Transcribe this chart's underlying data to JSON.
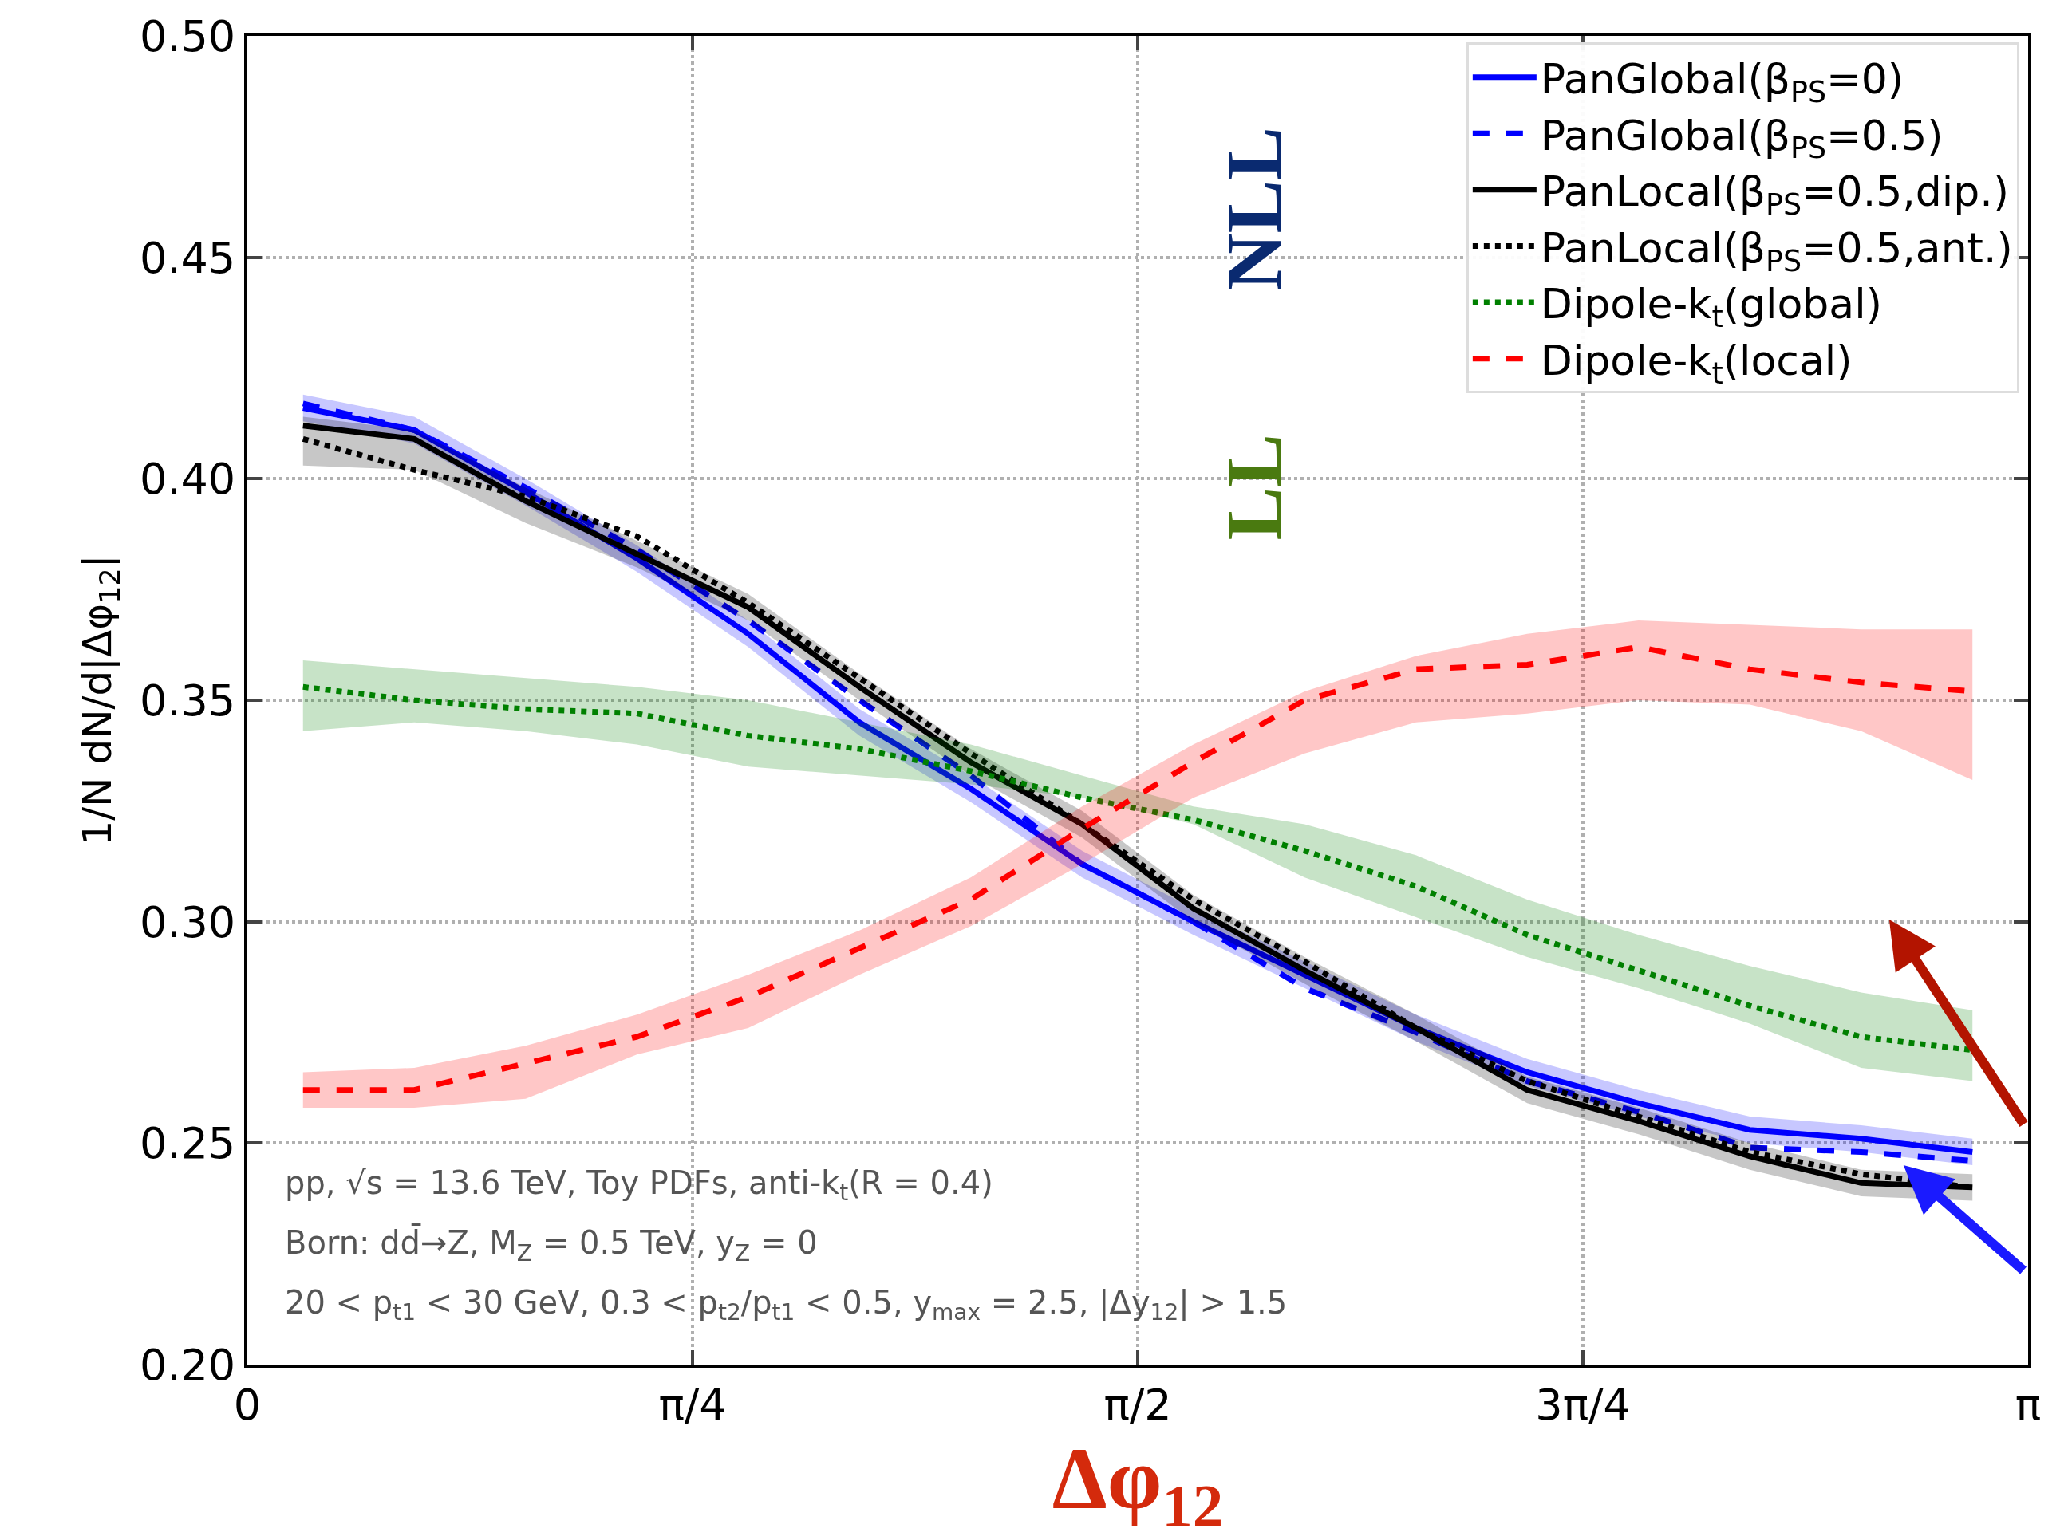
{
  "chart_data": {
    "type": "line",
    "x": [
      0.0982,
      0.2945,
      0.4909,
      0.6872,
      0.8836,
      1.0799,
      1.2763,
      1.4726,
      1.669,
      1.8653,
      2.0617,
      2.258,
      2.4544,
      2.6507,
      2.8471,
      3.0434
    ],
    "series": [
      {
        "name": "PanGlobal(β$_{PS}$=0)",
        "color": "#0000ff",
        "line_style": "solid",
        "values": [
          0.416,
          0.411,
          0.397,
          0.382,
          0.365,
          0.345,
          0.33,
          0.313,
          0.3,
          0.288,
          0.276,
          0.266,
          0.259,
          0.253,
          0.251,
          0.248
        ],
        "lower": [
          0.413,
          0.408,
          0.394,
          0.379,
          0.362,
          0.342,
          0.327,
          0.31,
          0.297,
          0.285,
          0.273,
          0.263,
          0.256,
          0.25,
          0.248,
          0.245
        ],
        "upper": [
          0.419,
          0.414,
          0.4,
          0.385,
          0.368,
          0.348,
          0.333,
          0.316,
          0.303,
          0.291,
          0.279,
          0.269,
          0.262,
          0.256,
          0.254,
          0.251
        ]
      },
      {
        "name": "PanGlobal(β$_{PS}$=0.5)",
        "color": "#0000ff",
        "line_style": "dashed",
        "values": [
          0.417,
          0.411,
          0.398,
          0.384,
          0.368,
          0.35,
          0.333,
          0.313,
          0.3,
          0.285,
          0.275,
          0.264,
          0.257,
          0.249,
          0.248,
          0.246
        ]
      },
      {
        "name": "PanLocal(β$_{PS}$=0.5,dip.)",
        "color": "#000000",
        "line_style": "solid",
        "values": [
          0.412,
          0.409,
          0.395,
          0.383,
          0.371,
          0.353,
          0.336,
          0.322,
          0.303,
          0.289,
          0.276,
          0.262,
          0.255,
          0.247,
          0.241,
          0.24
        ],
        "lower": [
          0.403,
          0.402,
          0.39,
          0.38,
          0.368,
          0.35,
          0.333,
          0.319,
          0.3,
          0.286,
          0.273,
          0.259,
          0.252,
          0.244,
          0.238,
          0.237
        ],
        "upper": [
          0.414,
          0.411,
          0.398,
          0.386,
          0.374,
          0.356,
          0.339,
          0.325,
          0.306,
          0.292,
          0.279,
          0.265,
          0.258,
          0.25,
          0.244,
          0.243
        ]
      },
      {
        "name": "PanLocal(β$_{PS}$=0.5,ant.)",
        "color": "#000000",
        "line_style": "dotted",
        "values": [
          0.409,
          0.402,
          0.396,
          0.387,
          0.372,
          0.355,
          0.338,
          0.322,
          0.305,
          0.291,
          0.276,
          0.264,
          0.256,
          0.248,
          0.243,
          0.24
        ]
      },
      {
        "name": "Dipole-k$_{t}$(global)",
        "color": "#008000",
        "line_style": "dotted",
        "values": [
          0.353,
          0.35,
          0.348,
          0.347,
          0.342,
          0.339,
          0.334,
          0.328,
          0.323,
          0.316,
          0.308,
          0.297,
          0.289,
          0.281,
          0.274,
          0.271
        ],
        "lower": [
          0.343,
          0.345,
          0.343,
          0.34,
          0.335,
          0.333,
          0.331,
          0.328,
          0.322,
          0.31,
          0.301,
          0.292,
          0.285,
          0.277,
          0.267,
          0.264
        ],
        "upper": [
          0.359,
          0.357,
          0.355,
          0.353,
          0.35,
          0.345,
          0.34,
          0.333,
          0.326,
          0.322,
          0.315,
          0.305,
          0.297,
          0.29,
          0.284,
          0.28
        ]
      },
      {
        "name": "Dipole-k$_{t}$(local)",
        "color": "#ff0000",
        "line_style": "dashed",
        "values": [
          0.262,
          0.262,
          0.268,
          0.274,
          0.283,
          0.294,
          0.305,
          0.321,
          0.336,
          0.35,
          0.357,
          0.358,
          0.362,
          0.357,
          0.354,
          0.352
        ],
        "lower": [
          0.258,
          0.258,
          0.26,
          0.27,
          0.276,
          0.288,
          0.299,
          0.313,
          0.328,
          0.338,
          0.345,
          0.347,
          0.35,
          0.349,
          0.343,
          0.332
        ],
        "upper": [
          0.266,
          0.267,
          0.272,
          0.279,
          0.288,
          0.298,
          0.31,
          0.326,
          0.34,
          0.352,
          0.36,
          0.365,
          0.368,
          0.367,
          0.366,
          0.366
        ]
      }
    ],
    "xlabel": "Δφ$_{12}$",
    "ylabel": "1/N dN/d|Δφ$_{12}$|",
    "xlim": [
      0,
      3.14159265
    ],
    "xticks": [
      0,
      {
        "value": 0.78539816,
        "label": "π/4"
      },
      {
        "value": 1.57079633,
        "label": "π/2"
      },
      {
        "value": 2.35619449,
        "label": "3π/4"
      },
      {
        "value": 3.14159265,
        "label": "π"
      }
    ],
    "ylim": [
      0.2,
      0.5
    ],
    "yticks": [
      {
        "value": 0.2,
        "label": "0.20"
      },
      0.25,
      {
        "value": 0.3,
        "label": "0.30"
      },
      0.35,
      {
        "value": 0.4,
        "label": "0.40"
      },
      0.45,
      {
        "value": 0.5,
        "label": "0.50"
      }
    ],
    "grid": true,
    "legend": "top right",
    "annotations": [
      "pp, √s = 13.6 TeV, Toy PDFs, anti-k$_{t}$(R = 0.4)",
      "Born: dd̄→Z, M$_{Z}$ = 0.5 TeV, y$_{Z}$ = 0",
      "20 < p$_{t1}$ < 30 GeV, 0.3 < p$_{t2}$/p$_{t1}$ < 0.5, y$_{max}$ = 2.5, |Δy$_{12}$| > 1.5",
      "NLL",
      "LL"
    ]
  }
}
